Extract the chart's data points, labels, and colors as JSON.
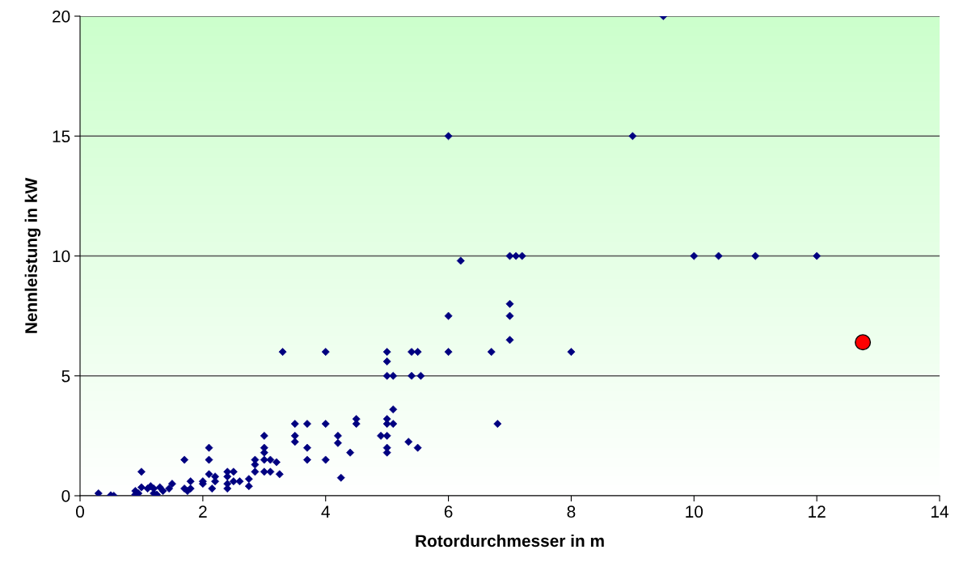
{
  "chart_data": {
    "type": "scatter",
    "xlabel": "Rotordurchmesser in m",
    "ylabel": "Nennleistung in kW",
    "xlim": [
      0,
      14
    ],
    "ylim": [
      0,
      20
    ],
    "xticks": [
      0,
      2,
      4,
      6,
      8,
      10,
      12,
      14
    ],
    "yticks": [
      0,
      5,
      10,
      15,
      20
    ],
    "grid": "y",
    "legend": false,
    "series": [
      {
        "color": "#000080",
        "marker": "diamond",
        "x": [
          0.3,
          0.5,
          0.55,
          0.9,
          0.9,
          0.95,
          1.0,
          1.0,
          1.1,
          1.15,
          1.2,
          1.2,
          1.25,
          1.3,
          1.35,
          1.45,
          1.5,
          1.7,
          1.7,
          1.75,
          1.8,
          1.8,
          2.0,
          2.0,
          2.1,
          2.1,
          2.1,
          2.15,
          2.2,
          2.2,
          2.4,
          2.4,
          2.4,
          2.4,
          2.5,
          2.5,
          2.6,
          2.75,
          2.75,
          2.85,
          2.85,
          2.85,
          3.0,
          3.0,
          3.0,
          3.0,
          3.0,
          3.1,
          3.1,
          3.2,
          3.25,
          3.3,
          3.5,
          3.5,
          3.5,
          3.7,
          3.7,
          3.7,
          4.0,
          4.0,
          4.0,
          4.2,
          4.2,
          4.25,
          4.4,
          4.5,
          4.5,
          4.9,
          5.0,
          5.0,
          5.0,
          5.0,
          5.0,
          5.0,
          5.0,
          5.0,
          5.1,
          5.1,
          5.1,
          5.35,
          5.4,
          5.4,
          5.5,
          5.5,
          5.55,
          6.0,
          6.0,
          6.0,
          6.2,
          6.7,
          6.8,
          7.0,
          7.0,
          7.0,
          7.0,
          7.1,
          7.2,
          8.0,
          9.0,
          9.5,
          10.0,
          10.4,
          11.0,
          12.0
        ],
        "values": [
          0.1,
          0.02,
          0,
          0.05,
          0.2,
          0.1,
          1.0,
          0.35,
          0.3,
          0.4,
          0.3,
          0.1,
          0.05,
          0.35,
          0.2,
          0.3,
          0.5,
          1.5,
          0.3,
          0.2,
          0.3,
          0.6,
          0.5,
          0.6,
          2.0,
          1.5,
          0.9,
          0.3,
          0.8,
          0.6,
          1.0,
          0.8,
          0.5,
          0.3,
          1.0,
          0.6,
          0.6,
          0.7,
          0.4,
          1.5,
          1.3,
          1.0,
          2.5,
          2.0,
          1.8,
          1.5,
          1.0,
          1.5,
          1.0,
          1.4,
          0.9,
          6.0,
          3.0,
          2.5,
          2.25,
          3.0,
          2.0,
          1.5,
          6.0,
          3.0,
          1.5,
          2.5,
          2.2,
          0.75,
          1.8,
          3.2,
          3.0,
          2.5,
          6.0,
          5.6,
          5.0,
          3.2,
          3.0,
          2.5,
          2.0,
          1.8,
          5.0,
          3.6,
          3.0,
          2.25,
          6.0,
          5.0,
          6.0,
          2.0,
          5.0,
          15,
          7.5,
          6.0,
          9.8,
          6.0,
          3.0,
          10,
          8.0,
          7.5,
          6.5,
          10,
          10,
          6.0,
          15,
          20,
          10,
          10,
          10,
          10
        ]
      },
      {
        "color": "#ff0000",
        "marker": "circle",
        "x": [
          12.75
        ],
        "values": [
          6.4
        ]
      }
    ]
  }
}
